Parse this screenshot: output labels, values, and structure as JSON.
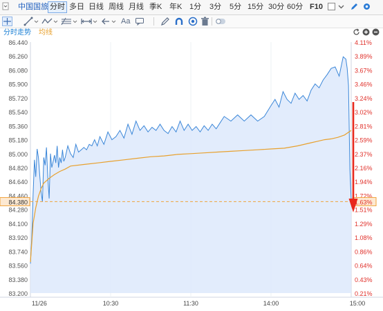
{
  "topbar": {
    "stock_name": "中国国旅",
    "periods": [
      "分时",
      "多日",
      "日线",
      "周线",
      "月线",
      "季K",
      "年K",
      "1分",
      "3分",
      "5分",
      "15分",
      "30分",
      "60分"
    ],
    "active_period": "分时",
    "f10_label": "F10",
    "icons": [
      "dropdown-icon",
      "checkbox-icon",
      "chevron-down-icon",
      "pencil-icon",
      "gear-icon"
    ]
  },
  "drawing_toolbar": {
    "text_tool_label": "Aa",
    "icons": [
      "crosshair-icon",
      "line-tool-icon",
      "dropdown-icon",
      "wave-tool-icon",
      "dropdown-icon",
      "fibonacci-icon",
      "dropdown-icon",
      "measure-icon",
      "dropdown-icon",
      "arrow-tool-icon",
      "dropdown-icon",
      "comment-icon",
      "pen-icon",
      "magnet-icon",
      "eye-icon",
      "trash-icon",
      "toggle-icon"
    ]
  },
  "chart_tabs": {
    "tab_intraday": "分时走势",
    "tab_avg": "均线",
    "controls": [
      "refresh-icon",
      "zoom-in-icon",
      "zoom-out-icon"
    ]
  },
  "colors": {
    "price_line": "#3a86d8",
    "avg_line": "#e8a02c",
    "up_text": "#e0302a",
    "price_axis_text": "#555555",
    "fill": "#dde9fb",
    "annotation_arrow": "#e8281c",
    "tab_active": "#1a7fd4",
    "tab_avg": "#e8a02c"
  },
  "chart_data": {
    "type": "line",
    "prev_close": 83.02,
    "y_price_labels": [
      "86.440",
      "86.260",
      "86.080",
      "85.900",
      "85.720",
      "85.540",
      "85.360",
      "85.180",
      "85.000",
      "84.820",
      "84.640",
      "84.460",
      "84.280",
      "84.100",
      "83.920",
      "83.740",
      "83.560",
      "83.380",
      "83.200"
    ],
    "y_pct_labels": [
      "4.11%",
      "3.89%",
      "3.67%",
      "3.46%",
      "3.24%",
      "3.02%",
      "2.81%",
      "2.59%",
      "2.37%",
      "2.16%",
      "1.94%",
      "1.72%",
      "1.51%",
      "1.29%",
      "1.08%",
      "0.86%",
      "0.64%",
      "0.43%",
      "0.21%"
    ],
    "x_tick_labels": [
      "11/26",
      "10:30",
      "11:30",
      "14:00",
      "15:00"
    ],
    "x_tick_minutes": [
      0,
      60,
      120,
      180,
      240
    ],
    "ylim": [
      83.2,
      86.44
    ],
    "last_price_label": "84.380",
    "last_pct_label": "1.63%",
    "last_price": 84.38,
    "series": [
      {
        "x": [
          0,
          1,
          2,
          3,
          4,
          5,
          6,
          7,
          8,
          9,
          10,
          11,
          12,
          13,
          14,
          15,
          16,
          17,
          18,
          19,
          20,
          21,
          22,
          23,
          24,
          25,
          26,
          28,
          30,
          32,
          34,
          36,
          38,
          40,
          42,
          44,
          46,
          48,
          50,
          52,
          55,
          58,
          61,
          64,
          67,
          70,
          73,
          76,
          79,
          82,
          85,
          88,
          91,
          94,
          97,
          100,
          103,
          106,
          109,
          112,
          115,
          118,
          121,
          124,
          127,
          130,
          133,
          136,
          139,
          142,
          145,
          150,
          155,
          160,
          165,
          170,
          175,
          180,
          183,
          186,
          189,
          192,
          195,
          198,
          201,
          204,
          207,
          210,
          213,
          216,
          219,
          222,
          225,
          228,
          231,
          234,
          236,
          237,
          238,
          239,
          240
        ],
        "values": [
          83.58,
          83.92,
          84.48,
          84.92,
          84.7,
          85.06,
          84.95,
          84.72,
          84.5,
          84.38,
          84.95,
          84.85,
          85.08,
          84.7,
          84.42,
          85.0,
          84.82,
          84.9,
          84.98,
          84.88,
          85.1,
          84.82,
          84.95,
          84.88,
          85.05,
          84.9,
          84.95,
          85.1,
          85.0,
          84.95,
          85.12,
          85.02,
          85.05,
          85.08,
          85.05,
          85.12,
          85.1,
          85.18,
          85.1,
          85.22,
          85.12,
          85.28,
          85.18,
          85.22,
          85.3,
          85.2,
          85.38,
          85.25,
          85.42,
          85.3,
          85.36,
          85.28,
          85.34,
          85.3,
          85.38,
          85.3,
          85.26,
          85.35,
          85.28,
          85.42,
          85.3,
          85.38,
          85.3,
          85.35,
          85.28,
          85.36,
          85.3,
          85.38,
          85.32,
          85.4,
          85.48,
          85.42,
          85.5,
          85.42,
          85.5,
          85.42,
          85.48,
          85.62,
          85.7,
          85.6,
          85.8,
          85.7,
          85.65,
          85.78,
          85.7,
          85.75,
          85.68,
          85.82,
          85.9,
          85.85,
          85.95,
          86.02,
          86.1,
          86.12,
          86.0,
          86.25,
          86.22,
          86.1,
          85.88,
          84.8,
          84.4
        ],
        "name": ""
      },
      {
        "x": [
          0,
          2,
          4,
          6,
          8,
          10,
          14,
          18,
          22,
          26,
          30,
          40,
          50,
          60,
          70,
          80,
          90,
          100,
          110,
          120,
          130,
          140,
          150,
          160,
          170,
          180,
          190,
          200,
          210,
          215,
          220,
          225,
          230,
          235,
          240
        ],
        "values": [
          83.6,
          84.1,
          84.3,
          84.45,
          84.55,
          84.62,
          84.68,
          84.73,
          84.77,
          84.8,
          84.84,
          84.86,
          84.88,
          84.9,
          84.92,
          84.94,
          84.96,
          84.97,
          84.99,
          85.0,
          85.01,
          85.02,
          85.03,
          85.04,
          85.05,
          85.06,
          85.07,
          85.1,
          85.14,
          85.16,
          85.18,
          85.19,
          85.21,
          85.24,
          85.3
        ],
        "name": ""
      }
    ]
  }
}
